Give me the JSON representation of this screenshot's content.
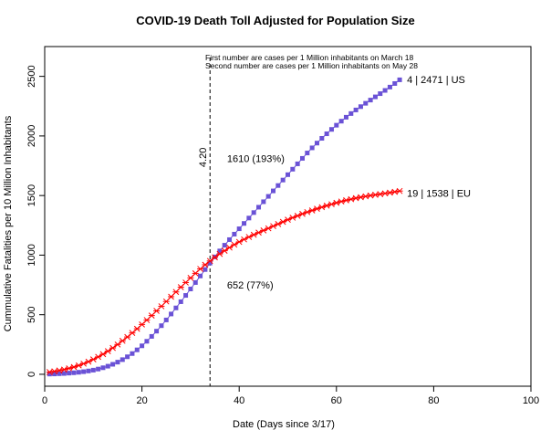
{
  "chart_data": {
    "type": "line",
    "title": "COVID-19 Death Toll Adjusted for Population Size",
    "xlabel": "Date (Days since 3/17)",
    "ylabel": "Cummulative Fatalities per 10 Million Inhabitants",
    "xlim": [
      0,
      100
    ],
    "ylim": [
      -100,
      2750
    ],
    "xticks": [
      "0",
      "20",
      "40",
      "60",
      "80",
      "100"
    ],
    "xtick_values": [
      0,
      20,
      40,
      60,
      80,
      100
    ],
    "yticks": [
      "0",
      "500",
      "1000",
      "1500",
      "2000",
      "2500"
    ],
    "ytick_values": [
      0,
      500,
      1000,
      1500,
      2000,
      2500
    ],
    "grid": false,
    "notes": [
      "First number are cases per 1 Million inhabitants on March 18",
      "Second number are cases per 1 Million inhabitants on May 28"
    ],
    "vline": {
      "x": 34,
      "label": "4.20"
    },
    "annotations": [
      {
        "text": "1610 (193%)",
        "x": 37.5,
        "y": 1810
      },
      {
        "text": "652 (77%)",
        "x": 37.5,
        "y": 750
      },
      {
        "text": "4 | 2471 | US",
        "x": 74.5,
        "y": 2475
      },
      {
        "text": "19 | 1538 | EU",
        "x": 74.5,
        "y": 1520
      }
    ],
    "colors": {
      "US": "#6a52d6",
      "EU": "#ff0000"
    },
    "series": [
      {
        "id": "US",
        "marker": "square",
        "x": [
          1,
          2,
          3,
          4,
          5,
          6,
          7,
          8,
          9,
          10,
          11,
          12,
          13,
          14,
          15,
          16,
          17,
          18,
          19,
          20,
          21,
          22,
          23,
          24,
          25,
          26,
          27,
          28,
          29,
          30,
          31,
          32,
          33,
          34,
          35,
          36,
          37,
          38,
          39,
          40,
          41,
          42,
          43,
          44,
          45,
          46,
          47,
          48,
          49,
          50,
          51,
          52,
          53,
          54,
          55,
          56,
          57,
          58,
          59,
          60,
          61,
          62,
          63,
          64,
          65,
          66,
          67,
          68,
          69,
          70,
          71,
          72,
          73
        ],
        "y": [
          2,
          3,
          5,
          7,
          10,
          13,
          17,
          22,
          28,
          35,
          44,
          55,
          68,
          84,
          102,
          123,
          147,
          174,
          205,
          239,
          277,
          318,
          362,
          408,
          456,
          506,
          557,
          609,
          662,
          716,
          770,
          825,
          879,
          933,
          985,
          1035,
          1083,
          1130,
          1176,
          1221,
          1266,
          1311,
          1357,
          1402,
          1448,
          1493,
          1539,
          1584,
          1630,
          1675,
          1721,
          1766,
          1812,
          1857,
          1900,
          1940,
          1980,
          2018,
          2055,
          2090,
          2124,
          2157,
          2188,
          2218,
          2246,
          2274,
          2301,
          2328,
          2355,
          2382,
          2410,
          2440,
          2471
        ]
      },
      {
        "id": "EU",
        "marker": "cross",
        "x": [
          1,
          2,
          3,
          4,
          5,
          6,
          7,
          8,
          9,
          10,
          11,
          12,
          13,
          14,
          15,
          16,
          17,
          18,
          19,
          20,
          21,
          22,
          23,
          24,
          25,
          26,
          27,
          28,
          29,
          30,
          31,
          32,
          33,
          34,
          35,
          36,
          37,
          38,
          39,
          40,
          41,
          42,
          43,
          44,
          45,
          46,
          47,
          48,
          49,
          50,
          51,
          52,
          53,
          54,
          55,
          56,
          57,
          58,
          59,
          60,
          61,
          62,
          63,
          64,
          65,
          66,
          67,
          68,
          69,
          70,
          71,
          72,
          73
        ],
        "y": [
          19,
          25,
          32,
          40,
          50,
          61,
          74,
          89,
          106,
          125,
          146,
          169,
          194,
          221,
          250,
          281,
          313,
          347,
          382,
          418,
          455,
          493,
          532,
          571,
          611,
          651,
          691,
          731,
          770,
          809,
          847,
          884,
          919,
          951,
          981,
          1010,
          1037,
          1063,
          1088,
          1111,
          1132,
          1152,
          1171,
          1189,
          1207,
          1225,
          1243,
          1261,
          1279,
          1297,
          1314,
          1330,
          1346,
          1361,
          1375,
          1389,
          1402,
          1415,
          1427,
          1439,
          1450,
          1460,
          1469,
          1478,
          1486,
          1493,
          1500,
          1506,
          1512,
          1518,
          1524,
          1531,
          1538
        ]
      }
    ]
  }
}
